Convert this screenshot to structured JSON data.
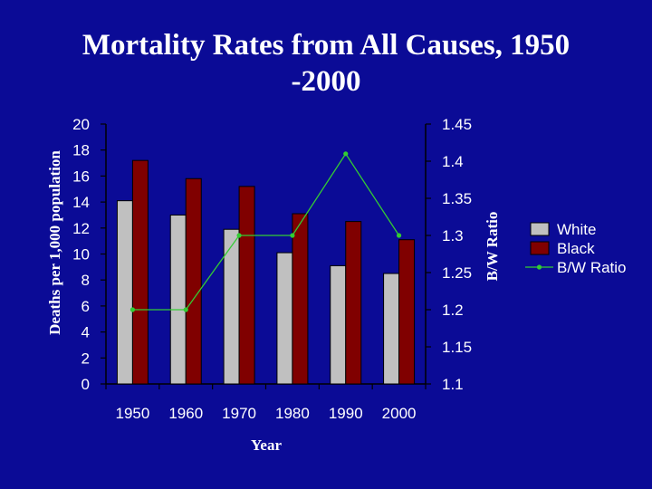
{
  "chart_data": {
    "type": "bar",
    "title": "Mortality Rates from All Causes, 1950\n-2000",
    "xlabel": "Year",
    "ylabel": "Deaths per 1,000 population",
    "y2label": "B/W Ratio",
    "categories": [
      "1950",
      "1960",
      "1970",
      "1980",
      "1990",
      "2000"
    ],
    "ylim": [
      0,
      20
    ],
    "yticks": [
      "0",
      "2",
      "4",
      "6",
      "8",
      "10",
      "12",
      "14",
      "16",
      "18",
      "20"
    ],
    "y2lim": [
      1.1,
      1.45
    ],
    "y2ticks": [
      "1.1",
      "1.15",
      "1.2",
      "1.25",
      "1.3",
      "1.35",
      "1.4",
      "1.45"
    ],
    "series": [
      {
        "name": "White",
        "type": "bar",
        "values": [
          14.1,
          13.0,
          11.9,
          10.1,
          9.1,
          8.5
        ],
        "color": "#c0c0c0"
      },
      {
        "name": "Black",
        "type": "bar",
        "values": [
          17.2,
          15.8,
          15.2,
          13.1,
          12.5,
          11.1
        ],
        "color": "#800000"
      },
      {
        "name": "B/W Ratio",
        "type": "line",
        "axis": "secondary",
        "values": [
          1.2,
          1.2,
          1.3,
          1.3,
          1.41,
          1.3
        ],
        "color": "#33cc33"
      }
    ],
    "grid": false,
    "legend": "right"
  }
}
